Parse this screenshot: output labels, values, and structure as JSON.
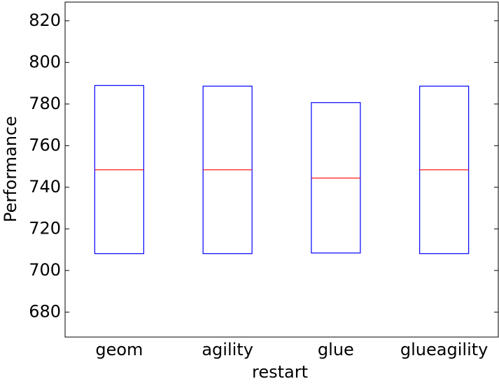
{
  "chart_data": {
    "type": "box",
    "x_label": "restart",
    "y_label": "Performance",
    "categories": [
      "geom",
      "agility",
      "glue",
      "glueagility"
    ],
    "q1": [
      708.1,
      708.1,
      708.4,
      708.1
    ],
    "median": [
      748.4,
      748.4,
      744.4,
      748.4
    ],
    "q3": [
      788.9,
      788.6,
      780.7,
      788.6
    ],
    "box_color": "#0000ff",
    "median_color": "#ff0000",
    "ylim": [
      668,
      829
    ],
    "yticks": [
      680,
      700,
      720,
      740,
      760,
      780,
      800,
      820
    ]
  }
}
